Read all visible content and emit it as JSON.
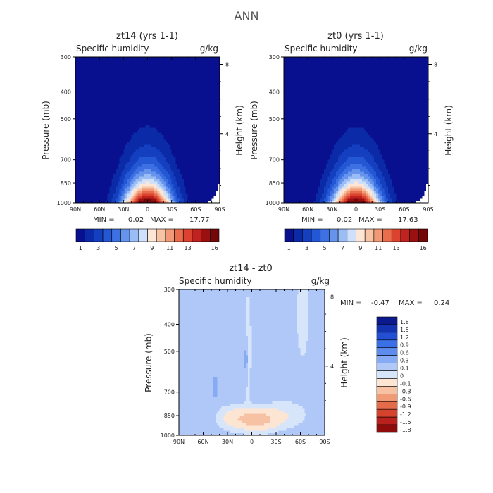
{
  "page_title": "ANN",
  "palette_abs": [
    "#08108f",
    "#0a2aa8",
    "#1440c0",
    "#2457d4",
    "#3d70e2",
    "#6694ec",
    "#9bbdf5",
    "#cfe0fa",
    "#fde6d6",
    "#f8c4a6",
    "#f29a77",
    "#e96d4c",
    "#db4330",
    "#c0231f",
    "#9a0f0f",
    "#740808"
  ],
  "palette_diff": [
    "#0a1a8c",
    "#1433b0",
    "#2350d2",
    "#3a6fe6",
    "#5d8cee",
    "#86aaf3",
    "#b0c8f8",
    "#d7e5fb",
    "#fde5d3",
    "#f7c2a4",
    "#f09a76",
    "#e56c4b",
    "#d5432e",
    "#b8211d",
    "#8e0c0c"
  ],
  "labels": {
    "specific_humidity": "Specific humidity",
    "units": "g/kg",
    "ylabel": "Pressure (mb)",
    "ylabel_right": "Height (km)"
  },
  "chart_data": [
    {
      "type": "heatmap",
      "title": "zt14 (yrs 1-1)",
      "field": "Specific humidity",
      "units": "g/kg",
      "xlabel": "",
      "ylabel": "Pressure (mb)",
      "ylabel_right": "Height (km)",
      "x_ticks": [
        "90N",
        "60N",
        "30N",
        "0",
        "30S",
        "60S",
        "90S"
      ],
      "y_ticks": [
        300,
        400,
        500,
        700,
        850,
        1000
      ],
      "y_right_ticks": [
        4,
        8
      ],
      "ylim": [
        1000,
        300
      ],
      "min": 0.02,
      "max": 17.77,
      "stats_text": {
        "min_label": "MIN =",
        "min": "0.02",
        "max_label": "MAX =",
        "max": "17.77"
      },
      "colorbar": {
        "labels": [
          "1",
          "3",
          "5",
          "7",
          "9",
          "11",
          "13",
          "16"
        ],
        "levels": [
          1,
          2,
          3,
          4,
          5,
          6,
          7,
          8,
          9,
          10,
          11,
          12,
          13,
          14,
          15,
          16
        ]
      },
      "mask_top": [
        1000,
        1000,
        1000,
        1000,
        1000,
        1000,
        1000,
        985,
        975,
        960,
        940,
        900,
        850
      ]
    },
    {
      "type": "heatmap",
      "title": "zt0 (yrs 1-1)",
      "field": "Specific humidity",
      "units": "g/kg",
      "xlabel": "",
      "ylabel": "Pressure (mb)",
      "ylabel_right": "Height (km)",
      "x_ticks": [
        "90N",
        "60N",
        "30N",
        "0",
        "30S",
        "60S",
        "90S"
      ],
      "y_ticks": [
        300,
        400,
        500,
        700,
        850,
        1000
      ],
      "y_right_ticks": [
        4,
        8
      ],
      "ylim": [
        1000,
        300
      ],
      "min": 0.02,
      "max": 17.63,
      "stats_text": {
        "min_label": "MIN =",
        "min": "0.02",
        "max_label": "MAX =",
        "max": "17.63"
      },
      "colorbar": {
        "labels": [
          "1",
          "3",
          "5",
          "7",
          "9",
          "11",
          "13",
          "16"
        ],
        "levels": [
          1,
          2,
          3,
          4,
          5,
          6,
          7,
          8,
          9,
          10,
          11,
          12,
          13,
          14,
          15,
          16
        ]
      },
      "mask_top": [
        1000,
        1000,
        1000,
        1000,
        1000,
        1000,
        1000,
        985,
        975,
        960,
        940,
        900,
        850
      ]
    },
    {
      "type": "heatmap",
      "title": "zt14 - zt0",
      "field": "Specific humidity",
      "units": "g/kg",
      "xlabel": "",
      "ylabel": "Pressure (mb)",
      "ylabel_right": "Height (km)",
      "x_ticks": [
        "90N",
        "60N",
        "30N",
        "0",
        "30S",
        "60S",
        "90S"
      ],
      "y_ticks": [
        300,
        400,
        500,
        700,
        850,
        1000
      ],
      "y_right_ticks": [
        4,
        8
      ],
      "ylim": [
        1000,
        300
      ],
      "min": -0.47,
      "max": 0.24,
      "stats_text": {
        "min_label": "MIN =",
        "min": "-0.47",
        "max_label": "MAX =",
        "max": "0.24"
      },
      "colorbar": {
        "labels": [
          "1.8",
          "1.5",
          "1.2",
          "0.9",
          "0.6",
          "0.3",
          "0.1",
          "0",
          "-0.1",
          "-0.3",
          "-0.6",
          "-0.9",
          "-1.2",
          "-1.5",
          "-1.8"
        ]
      }
    }
  ]
}
